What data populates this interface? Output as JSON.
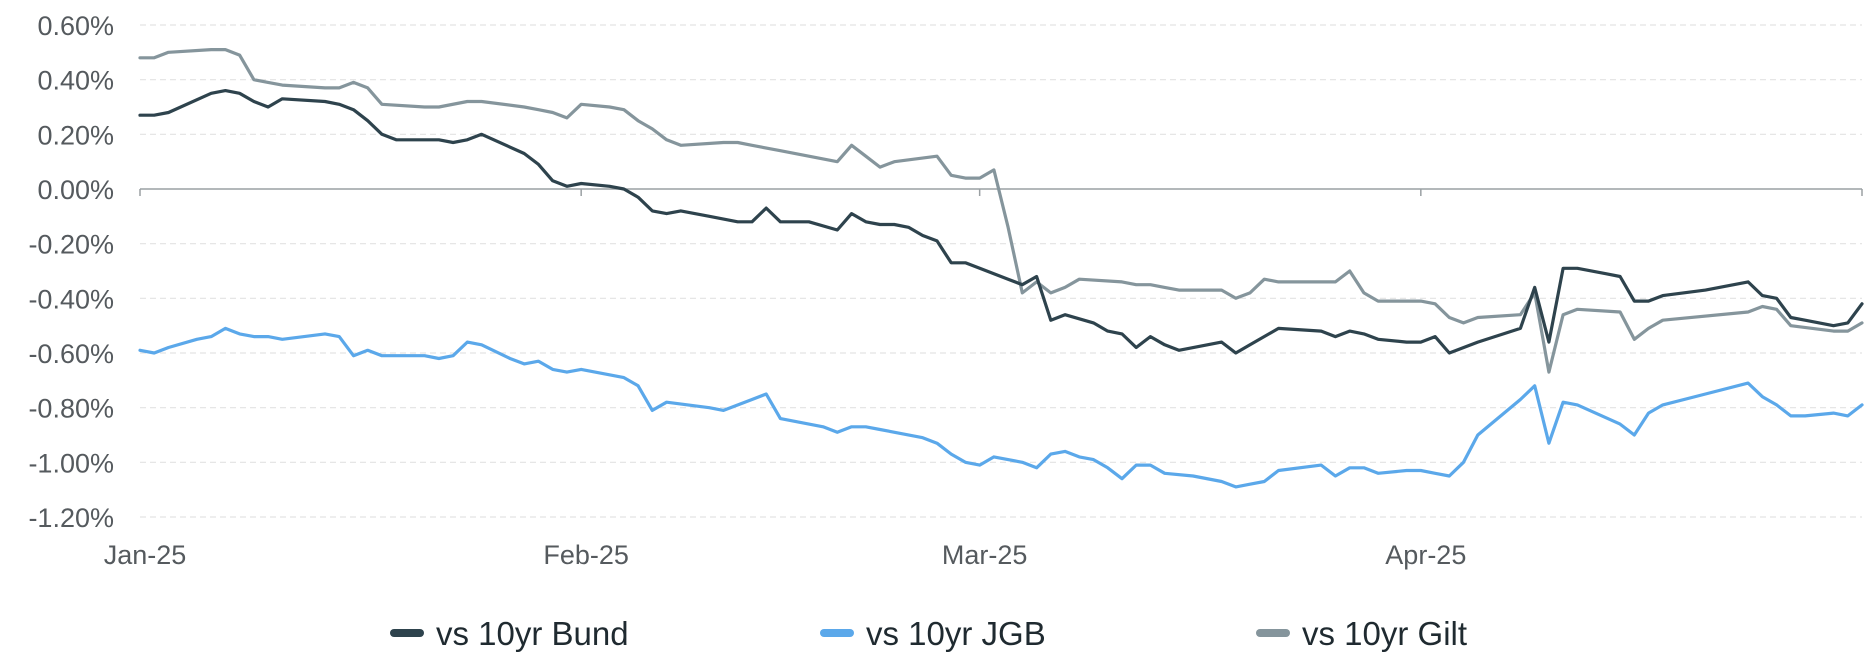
{
  "chart_data": {
    "type": "line",
    "title": "",
    "xlabel": "",
    "ylabel": "",
    "x_tick_labels": [
      {
        "date": "2025-01-01",
        "label": "Jan-25"
      },
      {
        "date": "2025-02-01",
        "label": "Feb-25"
      },
      {
        "date": "2025-03-01",
        "label": "Mar-25"
      },
      {
        "date": "2025-04-01",
        "label": "Apr-25"
      }
    ],
    "xlim": [
      "2025-01-01",
      "2025-05-02"
    ],
    "ylim": [
      -1.2,
      0.6
    ],
    "y_ticks": [
      0.6,
      0.4,
      0.2,
      0.0,
      -0.2,
      -0.4,
      -0.6,
      -0.8,
      -1.0,
      -1.2
    ],
    "y_tick_labels": [
      "0.60%",
      "0.40%",
      "0.20%",
      "0.00%",
      "-0.20%",
      "-0.40%",
      "-0.60%",
      "-0.80%",
      "-1.00%",
      "-1.20%"
    ],
    "y_unit": "%",
    "grid": "horizontal dashed",
    "legend_position": "bottom",
    "series": [
      {
        "name": "vs 10yr Bund",
        "color": "#2e434d",
        "points": [
          [
            "2025-01-01",
            0.27
          ],
          [
            "2025-01-02",
            0.27
          ],
          [
            "2025-01-03",
            0.28
          ],
          [
            "2025-01-06",
            0.35
          ],
          [
            "2025-01-07",
            0.36
          ],
          [
            "2025-01-08",
            0.35
          ],
          [
            "2025-01-09",
            0.32
          ],
          [
            "2025-01-10",
            0.3
          ],
          [
            "2025-01-11",
            0.33
          ],
          [
            "2025-01-14",
            0.32
          ],
          [
            "2025-01-15",
            0.31
          ],
          [
            "2025-01-16",
            0.29
          ],
          [
            "2025-01-17",
            0.25
          ],
          [
            "2025-01-18",
            0.2
          ],
          [
            "2025-01-19",
            0.18
          ],
          [
            "2025-01-21",
            0.18
          ],
          [
            "2025-01-22",
            0.18
          ],
          [
            "2025-01-23",
            0.17
          ],
          [
            "2025-01-24",
            0.18
          ],
          [
            "2025-01-25",
            0.2
          ],
          [
            "2025-01-28",
            0.13
          ],
          [
            "2025-01-29",
            0.09
          ],
          [
            "2025-01-30",
            0.03
          ],
          [
            "2025-01-31",
            0.01
          ],
          [
            "2025-02-01",
            0.02
          ],
          [
            "2025-02-03",
            0.01
          ],
          [
            "2025-02-04",
            0.0
          ],
          [
            "2025-02-05",
            -0.03
          ],
          [
            "2025-02-06",
            -0.08
          ],
          [
            "2025-02-07",
            -0.09
          ],
          [
            "2025-02-08",
            -0.08
          ],
          [
            "2025-02-10",
            -0.1
          ],
          [
            "2025-02-12",
            -0.12
          ],
          [
            "2025-02-13",
            -0.12
          ],
          [
            "2025-02-14",
            -0.07
          ],
          [
            "2025-02-15",
            -0.12
          ],
          [
            "2025-02-17",
            -0.12
          ],
          [
            "2025-02-19",
            -0.15
          ],
          [
            "2025-02-20",
            -0.09
          ],
          [
            "2025-02-21",
            -0.12
          ],
          [
            "2025-02-22",
            -0.13
          ],
          [
            "2025-02-23",
            -0.13
          ],
          [
            "2025-02-24",
            -0.14
          ],
          [
            "2025-02-25",
            -0.17
          ],
          [
            "2025-02-26",
            -0.19
          ],
          [
            "2025-02-27",
            -0.27
          ],
          [
            "2025-02-28",
            -0.27
          ],
          [
            "2025-03-01",
            -0.29
          ],
          [
            "2025-03-03",
            -0.33
          ],
          [
            "2025-03-04",
            -0.35
          ],
          [
            "2025-03-05",
            -0.32
          ],
          [
            "2025-03-06",
            -0.48
          ],
          [
            "2025-03-07",
            -0.46
          ],
          [
            "2025-03-09",
            -0.49
          ],
          [
            "2025-03-10",
            -0.52
          ],
          [
            "2025-03-11",
            -0.53
          ],
          [
            "2025-03-12",
            -0.58
          ],
          [
            "2025-03-13",
            -0.54
          ],
          [
            "2025-03-14",
            -0.57
          ],
          [
            "2025-03-15",
            -0.59
          ],
          [
            "2025-03-17",
            -0.57
          ],
          [
            "2025-03-18",
            -0.56
          ],
          [
            "2025-03-19",
            -0.6
          ],
          [
            "2025-03-20",
            -0.57
          ],
          [
            "2025-03-22",
            -0.51
          ],
          [
            "2025-03-25",
            -0.52
          ],
          [
            "2025-03-26",
            -0.54
          ],
          [
            "2025-03-27",
            -0.52
          ],
          [
            "2025-03-28",
            -0.53
          ],
          [
            "2025-03-29",
            -0.55
          ],
          [
            "2025-03-31",
            -0.56
          ],
          [
            "2025-04-01",
            -0.56
          ],
          [
            "2025-04-02",
            -0.54
          ],
          [
            "2025-04-03",
            -0.6
          ],
          [
            "2025-04-05",
            -0.56
          ],
          [
            "2025-04-08",
            -0.51
          ],
          [
            "2025-04-09",
            -0.36
          ],
          [
            "2025-04-10",
            -0.56
          ],
          [
            "2025-04-11",
            -0.29
          ],
          [
            "2025-04-12",
            -0.29
          ],
          [
            "2025-04-14",
            -0.31
          ],
          [
            "2025-04-15",
            -0.32
          ],
          [
            "2025-04-16",
            -0.41
          ],
          [
            "2025-04-17",
            -0.41
          ],
          [
            "2025-04-18",
            -0.39
          ],
          [
            "2025-04-21",
            -0.37
          ],
          [
            "2025-04-24",
            -0.34
          ],
          [
            "2025-04-25",
            -0.39
          ],
          [
            "2025-04-26",
            -0.4
          ],
          [
            "2025-04-27",
            -0.47
          ],
          [
            "2025-04-28",
            -0.48
          ],
          [
            "2025-04-30",
            -0.5
          ],
          [
            "2025-05-01",
            -0.49
          ],
          [
            "2025-05-02",
            -0.42
          ]
        ]
      },
      {
        "name": "vs 10yr JGB",
        "color": "#5ba8ea",
        "points": [
          [
            "2025-01-01",
            -0.59
          ],
          [
            "2025-01-02",
            -0.6
          ],
          [
            "2025-01-03",
            -0.58
          ],
          [
            "2025-01-05",
            -0.55
          ],
          [
            "2025-01-06",
            -0.54
          ],
          [
            "2025-01-07",
            -0.51
          ],
          [
            "2025-01-08",
            -0.53
          ],
          [
            "2025-01-09",
            -0.54
          ],
          [
            "2025-01-10",
            -0.54
          ],
          [
            "2025-01-11",
            -0.55
          ],
          [
            "2025-01-14",
            -0.53
          ],
          [
            "2025-01-15",
            -0.54
          ],
          [
            "2025-01-16",
            -0.61
          ],
          [
            "2025-01-17",
            -0.59
          ],
          [
            "2025-01-18",
            -0.61
          ],
          [
            "2025-01-21",
            -0.61
          ],
          [
            "2025-01-22",
            -0.62
          ],
          [
            "2025-01-23",
            -0.61
          ],
          [
            "2025-01-24",
            -0.56
          ],
          [
            "2025-01-25",
            -0.57
          ],
          [
            "2025-01-27",
            -0.62
          ],
          [
            "2025-01-28",
            -0.64
          ],
          [
            "2025-01-29",
            -0.63
          ],
          [
            "2025-01-30",
            -0.66
          ],
          [
            "2025-01-31",
            -0.67
          ],
          [
            "2025-02-01",
            -0.66
          ],
          [
            "2025-02-04",
            -0.69
          ],
          [
            "2025-02-05",
            -0.72
          ],
          [
            "2025-02-06",
            -0.81
          ],
          [
            "2025-02-07",
            -0.78
          ],
          [
            "2025-02-10",
            -0.8
          ],
          [
            "2025-02-11",
            -0.81
          ],
          [
            "2025-02-13",
            -0.77
          ],
          [
            "2025-02-14",
            -0.75
          ],
          [
            "2025-02-15",
            -0.84
          ],
          [
            "2025-02-16",
            -0.85
          ],
          [
            "2025-02-18",
            -0.87
          ],
          [
            "2025-02-19",
            -0.89
          ],
          [
            "2025-02-20",
            -0.87
          ],
          [
            "2025-02-21",
            -0.87
          ],
          [
            "2025-02-22",
            -0.88
          ],
          [
            "2025-02-25",
            -0.91
          ],
          [
            "2025-02-26",
            -0.93
          ],
          [
            "2025-02-27",
            -0.97
          ],
          [
            "2025-02-28",
            -1.0
          ],
          [
            "2025-03-01",
            -1.01
          ],
          [
            "2025-03-02",
            -0.98
          ],
          [
            "2025-03-04",
            -1.0
          ],
          [
            "2025-03-05",
            -1.02
          ],
          [
            "2025-03-06",
            -0.97
          ],
          [
            "2025-03-07",
            -0.96
          ],
          [
            "2025-03-08",
            -0.98
          ],
          [
            "2025-03-09",
            -0.99
          ],
          [
            "2025-03-10",
            -1.02
          ],
          [
            "2025-03-11",
            -1.06
          ],
          [
            "2025-03-12",
            -1.01
          ],
          [
            "2025-03-13",
            -1.01
          ],
          [
            "2025-03-14",
            -1.04
          ],
          [
            "2025-03-16",
            -1.05
          ],
          [
            "2025-03-18",
            -1.07
          ],
          [
            "2025-03-19",
            -1.09
          ],
          [
            "2025-03-20",
            -1.08
          ],
          [
            "2025-03-21",
            -1.07
          ],
          [
            "2025-03-22",
            -1.03
          ],
          [
            "2025-03-25",
            -1.01
          ],
          [
            "2025-03-26",
            -1.05
          ],
          [
            "2025-03-27",
            -1.02
          ],
          [
            "2025-03-28",
            -1.02
          ],
          [
            "2025-03-29",
            -1.04
          ],
          [
            "2025-03-31",
            -1.03
          ],
          [
            "2025-04-01",
            -1.03
          ],
          [
            "2025-04-02",
            -1.04
          ],
          [
            "2025-04-03",
            -1.05
          ],
          [
            "2025-04-04",
            -1.0
          ],
          [
            "2025-04-05",
            -0.9
          ],
          [
            "2025-04-08",
            -0.77
          ],
          [
            "2025-04-09",
            -0.72
          ],
          [
            "2025-04-10",
            -0.93
          ],
          [
            "2025-04-11",
            -0.78
          ],
          [
            "2025-04-12",
            -0.79
          ],
          [
            "2025-04-15",
            -0.86
          ],
          [
            "2025-04-16",
            -0.9
          ],
          [
            "2025-04-17",
            -0.82
          ],
          [
            "2025-04-18",
            -0.79
          ],
          [
            "2025-04-21",
            -0.75
          ],
          [
            "2025-04-24",
            -0.71
          ],
          [
            "2025-04-25",
            -0.76
          ],
          [
            "2025-04-26",
            -0.79
          ],
          [
            "2025-04-27",
            -0.83
          ],
          [
            "2025-04-28",
            -0.83
          ],
          [
            "2025-04-30",
            -0.82
          ],
          [
            "2025-05-01",
            -0.83
          ],
          [
            "2025-05-02",
            -0.79
          ]
        ]
      },
      {
        "name": "vs 10yr Gilt",
        "color": "#85959c",
        "points": [
          [
            "2025-01-01",
            0.48
          ],
          [
            "2025-01-02",
            0.48
          ],
          [
            "2025-01-03",
            0.5
          ],
          [
            "2025-01-06",
            0.51
          ],
          [
            "2025-01-07",
            0.51
          ],
          [
            "2025-01-08",
            0.49
          ],
          [
            "2025-01-09",
            0.4
          ],
          [
            "2025-01-10",
            0.39
          ],
          [
            "2025-01-11",
            0.38
          ],
          [
            "2025-01-14",
            0.37
          ],
          [
            "2025-01-15",
            0.37
          ],
          [
            "2025-01-16",
            0.39
          ],
          [
            "2025-01-17",
            0.37
          ],
          [
            "2025-01-18",
            0.31
          ],
          [
            "2025-01-21",
            0.3
          ],
          [
            "2025-01-22",
            0.3
          ],
          [
            "2025-01-24",
            0.32
          ],
          [
            "2025-01-25",
            0.32
          ],
          [
            "2025-01-28",
            0.3
          ],
          [
            "2025-01-29",
            0.29
          ],
          [
            "2025-01-30",
            0.28
          ],
          [
            "2025-01-31",
            0.26
          ],
          [
            "2025-02-01",
            0.31
          ],
          [
            "2025-02-03",
            0.3
          ],
          [
            "2025-02-04",
            0.29
          ],
          [
            "2025-02-05",
            0.25
          ],
          [
            "2025-02-06",
            0.22
          ],
          [
            "2025-02-07",
            0.18
          ],
          [
            "2025-02-08",
            0.16
          ],
          [
            "2025-02-11",
            0.17
          ],
          [
            "2025-02-12",
            0.17
          ],
          [
            "2025-02-13",
            0.16
          ],
          [
            "2025-02-15",
            0.14
          ],
          [
            "2025-02-19",
            0.1
          ],
          [
            "2025-02-20",
            0.16
          ],
          [
            "2025-02-21",
            0.12
          ],
          [
            "2025-02-22",
            0.08
          ],
          [
            "2025-02-23",
            0.1
          ],
          [
            "2025-02-26",
            0.12
          ],
          [
            "2025-02-27",
            0.05
          ],
          [
            "2025-02-28",
            0.04
          ],
          [
            "2025-03-01",
            0.04
          ],
          [
            "2025-03-02",
            0.07
          ],
          [
            "2025-03-03",
            -0.14
          ],
          [
            "2025-03-04",
            -0.38
          ],
          [
            "2025-03-05",
            -0.34
          ],
          [
            "2025-03-06",
            -0.38
          ],
          [
            "2025-03-07",
            -0.36
          ],
          [
            "2025-03-08",
            -0.33
          ],
          [
            "2025-03-11",
            -0.34
          ],
          [
            "2025-03-12",
            -0.35
          ],
          [
            "2025-03-13",
            -0.35
          ],
          [
            "2025-03-14",
            -0.36
          ],
          [
            "2025-03-15",
            -0.37
          ],
          [
            "2025-03-18",
            -0.37
          ],
          [
            "2025-03-19",
            -0.4
          ],
          [
            "2025-03-20",
            -0.38
          ],
          [
            "2025-03-21",
            -0.33
          ],
          [
            "2025-03-22",
            -0.34
          ],
          [
            "2025-03-26",
            -0.34
          ],
          [
            "2025-03-27",
            -0.3
          ],
          [
            "2025-03-28",
            -0.38
          ],
          [
            "2025-03-29",
            -0.41
          ],
          [
            "2025-04-01",
            -0.41
          ],
          [
            "2025-04-02",
            -0.42
          ],
          [
            "2025-04-03",
            -0.47
          ],
          [
            "2025-04-04",
            -0.49
          ],
          [
            "2025-04-05",
            -0.47
          ],
          [
            "2025-04-08",
            -0.46
          ],
          [
            "2025-04-09",
            -0.38
          ],
          [
            "2025-04-10",
            -0.67
          ],
          [
            "2025-04-11",
            -0.46
          ],
          [
            "2025-04-12",
            -0.44
          ],
          [
            "2025-04-15",
            -0.45
          ],
          [
            "2025-04-16",
            -0.55
          ],
          [
            "2025-04-17",
            -0.51
          ],
          [
            "2025-04-18",
            -0.48
          ],
          [
            "2025-04-24",
            -0.45
          ],
          [
            "2025-04-25",
            -0.43
          ],
          [
            "2025-04-26",
            -0.44
          ],
          [
            "2025-04-27",
            -0.5
          ],
          [
            "2025-04-30",
            -0.52
          ],
          [
            "2025-05-01",
            -0.52
          ],
          [
            "2025-05-02",
            -0.49
          ]
        ]
      }
    ]
  }
}
